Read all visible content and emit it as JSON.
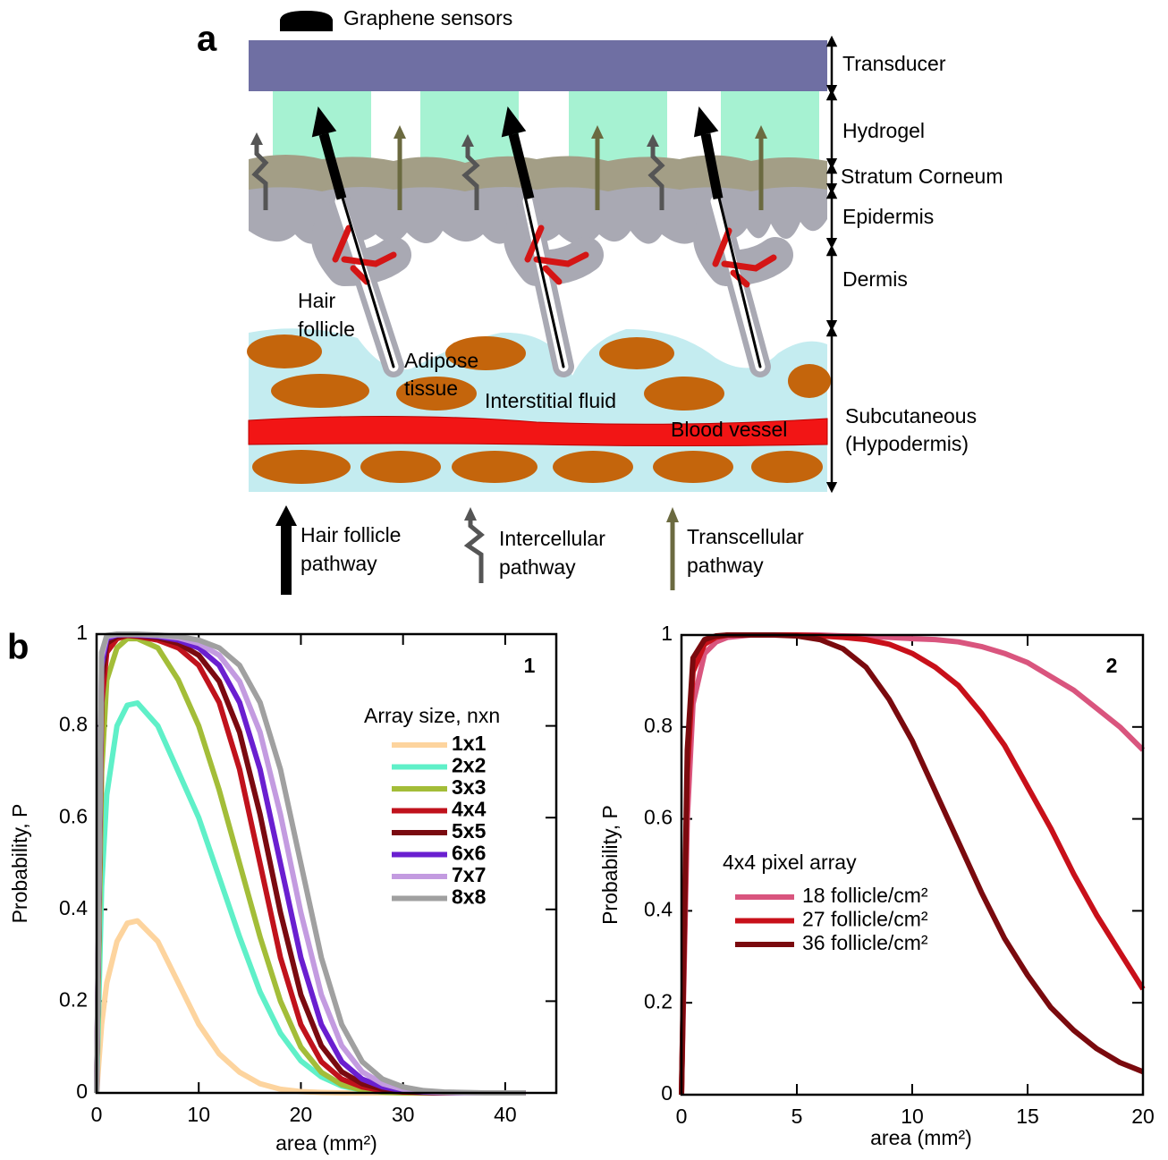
{
  "diagram": {
    "panel_label": "a",
    "sensor_legend": "Graphene sensors",
    "layers": [
      [
        "Transducer"
      ],
      [
        "Hydrogel"
      ],
      [
        "Stratum Corneum"
      ],
      [
        "Epidermis"
      ],
      [
        "Dermis"
      ],
      [
        "Subcutaneous",
        "(Hypodermis)"
      ]
    ],
    "hair_follicle": [
      "Hair",
      "follicle"
    ],
    "adipose": [
      "Adipose",
      "tissue"
    ],
    "interstitial": "Interstitial fluid",
    "blood_vessel": "Blood vessel",
    "pathways": [
      [
        "Hair follicle",
        "pathway"
      ],
      [
        "Intercellular",
        "pathway"
      ],
      [
        "Transcellular",
        "pathway"
      ]
    ]
  },
  "panel_b_label": "b",
  "chart_data": [
    {
      "type": "line",
      "panel_label": "1",
      "x_label": "area (mm²)",
      "y_label": "Probability, P",
      "xlim": [
        0,
        45
      ],
      "xticks": [
        0,
        10,
        20,
        30,
        40
      ],
      "ylim": [
        0,
        1
      ],
      "yticks": [
        0,
        0.2,
        0.4,
        0.6,
        0.8,
        1
      ],
      "legend_title": "Array size, nxn",
      "x": [
        0,
        0.5,
        1,
        2,
        3,
        4,
        6,
        8,
        10,
        12,
        14,
        16,
        18,
        20,
        22,
        24,
        26,
        28,
        30,
        32,
        34,
        36,
        38,
        40,
        42
      ],
      "series": [
        {
          "name": "1x1",
          "color": "#fdd49e",
          "values": [
            0,
            0.15,
            0.24,
            0.33,
            0.37,
            0.375,
            0.33,
            0.24,
            0.15,
            0.085,
            0.045,
            0.02,
            0.008,
            0.003,
            0.001,
            0,
            0,
            0,
            0,
            0,
            0,
            0,
            0,
            0,
            0
          ]
        },
        {
          "name": "2x2",
          "color": "#5ff0c8",
          "values": [
            0,
            0.45,
            0.65,
            0.8,
            0.845,
            0.85,
            0.8,
            0.7,
            0.6,
            0.47,
            0.34,
            0.22,
            0.13,
            0.07,
            0.035,
            0.015,
            0.006,
            0.002,
            0,
            0,
            0,
            0,
            0,
            0,
            0
          ]
        },
        {
          "name": "3x3",
          "color": "#a3bd38",
          "values": [
            0,
            0.7,
            0.9,
            0.97,
            0.99,
            0.99,
            0.97,
            0.9,
            0.8,
            0.66,
            0.5,
            0.34,
            0.2,
            0.1,
            0.045,
            0.018,
            0.006,
            0.002,
            0,
            0,
            0,
            0,
            0,
            0,
            0
          ]
        },
        {
          "name": "4x4",
          "color": "#c0121c",
          "values": [
            0,
            0.85,
            0.96,
            0.99,
            0.997,
            0.995,
            0.987,
            0.97,
            0.932,
            0.851,
            0.705,
            0.5,
            0.295,
            0.149,
            0.068,
            0.03,
            0.013,
            0.005,
            0.002,
            0.001,
            0,
            0,
            0,
            0,
            0
          ]
        },
        {
          "name": "5x5",
          "color": "#7a0a10",
          "values": [
            0,
            0.9,
            0.98,
            0.995,
            0.998,
            0.997,
            0.992,
            0.98,
            0.954,
            0.897,
            0.786,
            0.607,
            0.393,
            0.214,
            0.103,
            0.046,
            0.02,
            0.008,
            0.003,
            0.001,
            0,
            0,
            0,
            0,
            0
          ]
        },
        {
          "name": "6x6",
          "color": "#6a1fd0",
          "values": [
            0,
            0.93,
            0.99,
            0.998,
            0.999,
            0.998,
            0.995,
            0.987,
            0.97,
            0.932,
            0.851,
            0.705,
            0.5,
            0.295,
            0.149,
            0.068,
            0.03,
            0.013,
            0.005,
            0.002,
            0.001,
            0,
            0,
            0,
            0
          ]
        },
        {
          "name": "7x7",
          "color": "#c39be0",
          "values": [
            0,
            0.95,
            0.995,
            0.999,
            0.999,
            0.999,
            0.997,
            0.992,
            0.98,
            0.954,
            0.897,
            0.786,
            0.607,
            0.393,
            0.214,
            0.103,
            0.046,
            0.02,
            0.008,
            0.003,
            0.001,
            0,
            0,
            0,
            0
          ]
        },
        {
          "name": "8x8",
          "color": "#a0a0a0",
          "values": [
            0,
            0.96,
            0.997,
            1,
            1,
            1,
            0.998,
            0.995,
            0.987,
            0.97,
            0.932,
            0.851,
            0.705,
            0.5,
            0.295,
            0.149,
            0.068,
            0.03,
            0.013,
            0.005,
            0.002,
            0.001,
            0,
            0,
            0
          ]
        }
      ]
    },
    {
      "type": "line",
      "panel_label": "2",
      "x_label": "area (mm²)",
      "y_label": "Probability, P",
      "xlim": [
        0,
        20
      ],
      "xticks": [
        0,
        5,
        10,
        15,
        20
      ],
      "ylim": [
        0,
        1
      ],
      "yticks": [
        0,
        0.2,
        0.4,
        0.6,
        0.8,
        1
      ],
      "legend_title": "4x4 pixel array",
      "x": [
        0,
        0.25,
        0.5,
        1,
        1.5,
        2,
        3,
        4,
        5,
        6,
        7,
        8,
        9,
        10,
        11,
        12,
        13,
        14,
        15,
        16,
        17,
        18,
        19,
        20
      ],
      "series": [
        {
          "name": "18 follicle/cm²",
          "color": "#d9557e",
          "values": [
            0,
            0.6,
            0.85,
            0.96,
            0.985,
            0.995,
            1,
            1,
            1,
            1,
            0.998,
            0.997,
            0.995,
            0.992,
            0.99,
            0.985,
            0.975,
            0.96,
            0.94,
            0.91,
            0.88,
            0.84,
            0.8,
            0.75
          ]
        },
        {
          "name": "27 follicle/cm²",
          "color": "#c8101a",
          "values": [
            0,
            0.7,
            0.92,
            0.98,
            0.995,
            1,
            1,
            1,
            1,
            0.998,
            0.995,
            0.99,
            0.98,
            0.96,
            0.93,
            0.89,
            0.83,
            0.76,
            0.67,
            0.58,
            0.48,
            0.39,
            0.31,
            0.23
          ]
        },
        {
          "name": "36 follicle/cm²",
          "color": "#7a0a0e",
          "values": [
            0,
            0.75,
            0.95,
            0.99,
            0.998,
            1,
            1,
            1,
            0.998,
            0.99,
            0.97,
            0.93,
            0.86,
            0.77,
            0.66,
            0.55,
            0.44,
            0.34,
            0.26,
            0.19,
            0.14,
            0.1,
            0.07,
            0.05
          ]
        }
      ]
    }
  ]
}
